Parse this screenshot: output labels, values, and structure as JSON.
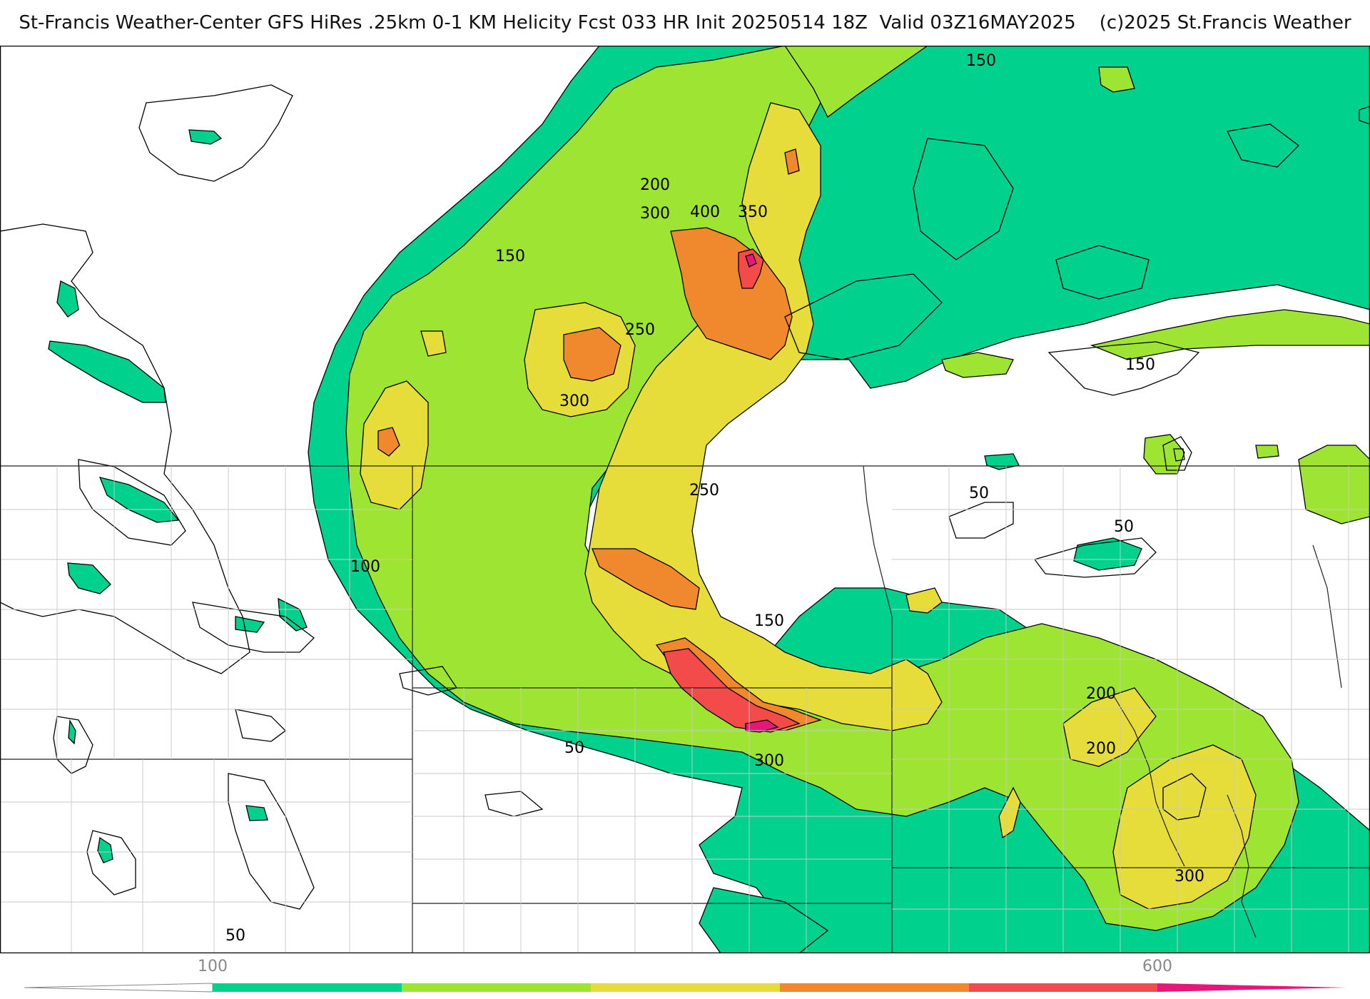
{
  "header": {
    "title": "St-Francis Weather-Center GFS HiRes .25km 0-1 KM Helicity Fcst 033 HR Init 20250514 18Z  Valid 03Z16MAY2025",
    "copyright": "(c)2025 St.Francis Weather"
  },
  "map": {
    "contour_labels": [
      "150",
      "200",
      "300",
      "400",
      "350",
      "150",
      "250",
      "300",
      "250",
      "100",
      "150",
      "50",
      "300",
      "50",
      "50",
      "150",
      "200",
      "200",
      "300",
      "50"
    ],
    "colors": {
      "level_50": "#00d18c",
      "level_150": "#9ee433",
      "level_250": "#e6dc3a",
      "level_350": "#f0892d",
      "level_450": "#f34a4a",
      "level_550": "#e8157a"
    }
  },
  "colorbar": {
    "tick_labels": [
      "100",
      "600"
    ],
    "segments": [
      "#00d18c",
      "#9ee433",
      "#e6dc3a",
      "#f0892d",
      "#f34a4a",
      "#e8157a"
    ]
  }
}
